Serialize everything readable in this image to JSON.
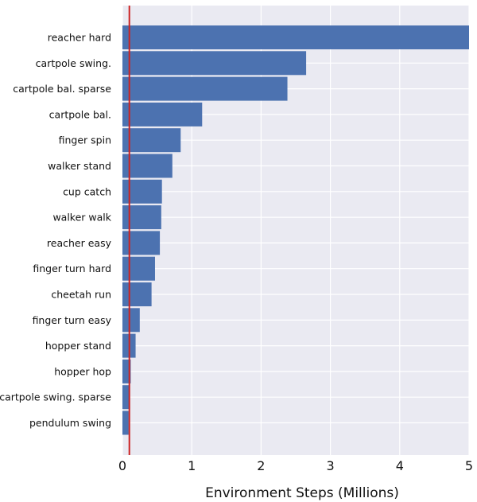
{
  "chart_data": {
    "type": "bar",
    "orientation": "horizontal",
    "categories": [
      "reacher hard",
      "cartpole swing.",
      "cartpole bal. sparse",
      "cartpole bal.",
      "finger spin",
      "walker stand",
      "cup catch",
      "walker walk",
      "reacher easy",
      "finger turn hard",
      "cheetah run",
      "finger turn easy",
      "hopper stand",
      "hopper hop",
      "cartpole swing. sparse",
      "pendulum swing"
    ],
    "values": [
      5.0,
      2.65,
      2.38,
      1.15,
      0.84,
      0.72,
      0.57,
      0.56,
      0.54,
      0.47,
      0.42,
      0.25,
      0.19,
      0.12,
      0.11,
      0.09
    ],
    "xlabel": "Environment Steps (Millions)",
    "ylabel": "",
    "xlim": [
      0,
      5
    ],
    "xticks": [
      0,
      1,
      2,
      3,
      4,
      5
    ],
    "reference_line": {
      "x": 0.1,
      "color": "#cc2222"
    },
    "grid": true,
    "background": "#eaeaf2",
    "bar_color": "#4c72b0"
  }
}
